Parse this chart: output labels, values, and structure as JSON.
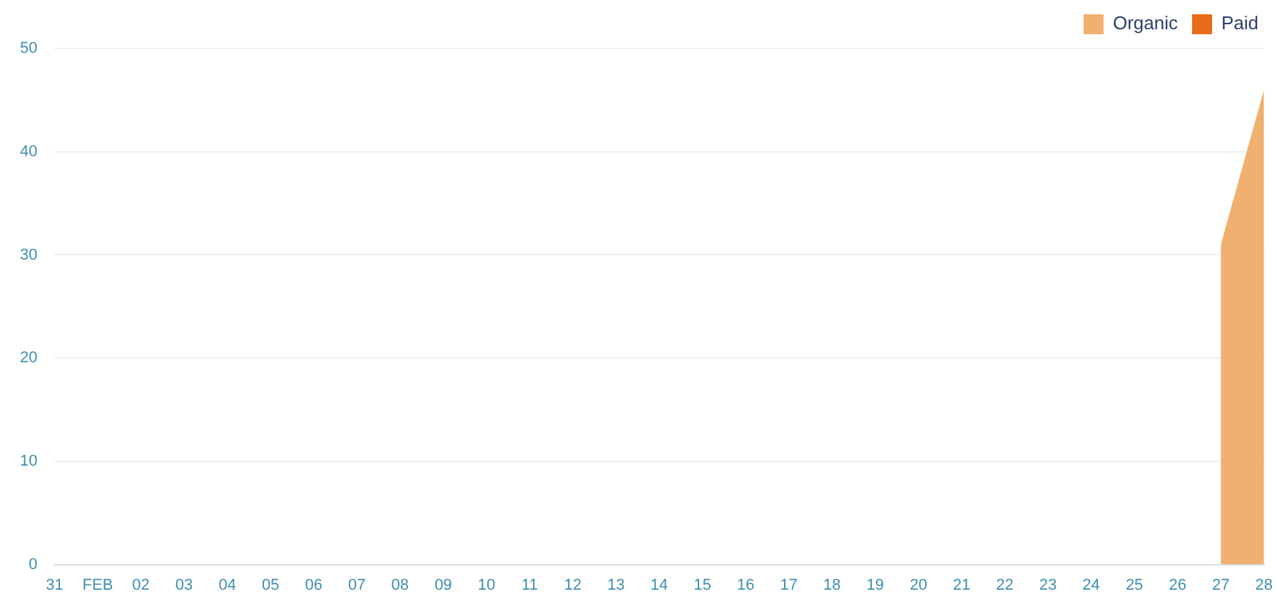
{
  "chart_data": {
    "type": "area",
    "categories": [
      "31",
      "FEB",
      "02",
      "03",
      "04",
      "05",
      "06",
      "07",
      "08",
      "09",
      "10",
      "11",
      "12",
      "13",
      "14",
      "15",
      "16",
      "17",
      "18",
      "19",
      "20",
      "21",
      "22",
      "23",
      "24",
      "25",
      "26",
      "27",
      "28"
    ],
    "series": [
      {
        "name": "Organic",
        "color": "#f0b070",
        "values": [
          null,
          null,
          null,
          null,
          null,
          null,
          null,
          null,
          null,
          null,
          null,
          null,
          null,
          null,
          null,
          null,
          null,
          null,
          null,
          null,
          null,
          null,
          null,
          null,
          null,
          null,
          null,
          31,
          46
        ]
      },
      {
        "name": "Paid",
        "color": "#ea6a1c",
        "values": [
          null,
          null,
          null,
          null,
          null,
          null,
          null,
          null,
          null,
          null,
          null,
          null,
          null,
          null,
          null,
          null,
          null,
          null,
          null,
          null,
          null,
          null,
          null,
          null,
          null,
          null,
          null,
          null,
          null
        ]
      }
    ],
    "ylim": [
      0,
      50
    ],
    "yticks": [
      0,
      10,
      20,
      30,
      40,
      50
    ],
    "grid": "y",
    "legend": "top right"
  }
}
